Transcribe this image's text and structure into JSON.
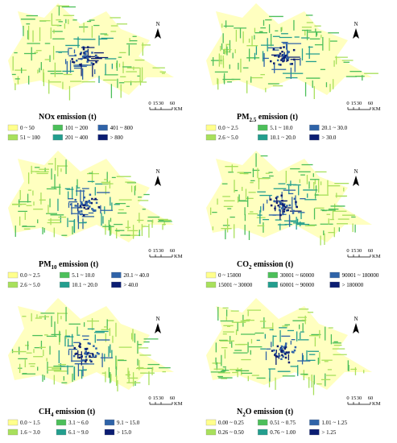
{
  "legend_colors": [
    "#ffff8c",
    "#a8e05c",
    "#4cbf5a",
    "#239e8e",
    "#2f63a8",
    "#0b1d72"
  ],
  "panels": [
    {
      "title": {
        "main": "NOx emission (t)"
      },
      "north": "N",
      "scale": [
        "0",
        "15",
        "30",
        "60",
        "KM"
      ],
      "legend": [
        "0 ~ 50",
        "51 ~ 100",
        "101 ~ 200",
        "201 ~ 400",
        "401 ~ 800",
        "> 800"
      ]
    },
    {
      "title": {
        "main": "PM",
        "sub": "2.5",
        "rest": " emission (t)"
      },
      "north": "N",
      "scale": [
        "0",
        "15",
        "30",
        "60",
        "KM"
      ],
      "legend": [
        "0.0 ~ 2.5",
        "2.6 ~ 5.0",
        "5.1 ~ 10.0",
        "10.1 ~ 20.0",
        "20.1 ~ 30.0",
        "> 30.0"
      ]
    },
    {
      "title": {
        "main": "PM",
        "sub": "10",
        "rest": " emission (t)"
      },
      "north": "N",
      "scale": [
        "0",
        "15",
        "30",
        "60",
        "KM"
      ],
      "legend": [
        "0.0 ~ 2.5",
        "2.6 ~ 5.0",
        "5.1 ~ 10.0",
        "10.1 ~ 20.0",
        "20.1 ~ 40.0",
        "> 40.0"
      ]
    },
    {
      "title": {
        "main": "CO",
        "sub": "2",
        "rest": " emission (t)"
      },
      "north": "N",
      "scale": [
        "0",
        "15",
        "30",
        "60",
        "KM"
      ],
      "legend": [
        "0 ~ 15000",
        "15001 ~ 30000",
        "30001 ~ 60000",
        "60001 ~ 90000",
        "90001 ~ 180000",
        "> 180000"
      ]
    },
    {
      "title": {
        "main": "CH",
        "sub": "4",
        "rest": " emission (t)"
      },
      "north": "N",
      "scale": [
        "0",
        "15",
        "30",
        "60",
        "KM"
      ],
      "legend": [
        "0.0 ~ 1.5",
        "1.6 ~ 3.0",
        "3.1 ~ 6.0",
        "6.1 ~ 9.0",
        "9.1 ~ 15.0",
        "> 15.0"
      ]
    },
    {
      "title": {
        "main": "N",
        "sub": "2",
        "rest": "O emission (t)"
      },
      "north": "N",
      "scale": [
        "0",
        "15",
        "30",
        "60",
        "KM"
      ],
      "legend": [
        "0.00 ~ 0.25",
        "0.26 ~ 0.50",
        "0.51 ~ 0.75",
        "0.76 ~ 1.00",
        "1.01 ~ 1.25",
        "> 1.25"
      ]
    }
  ]
}
